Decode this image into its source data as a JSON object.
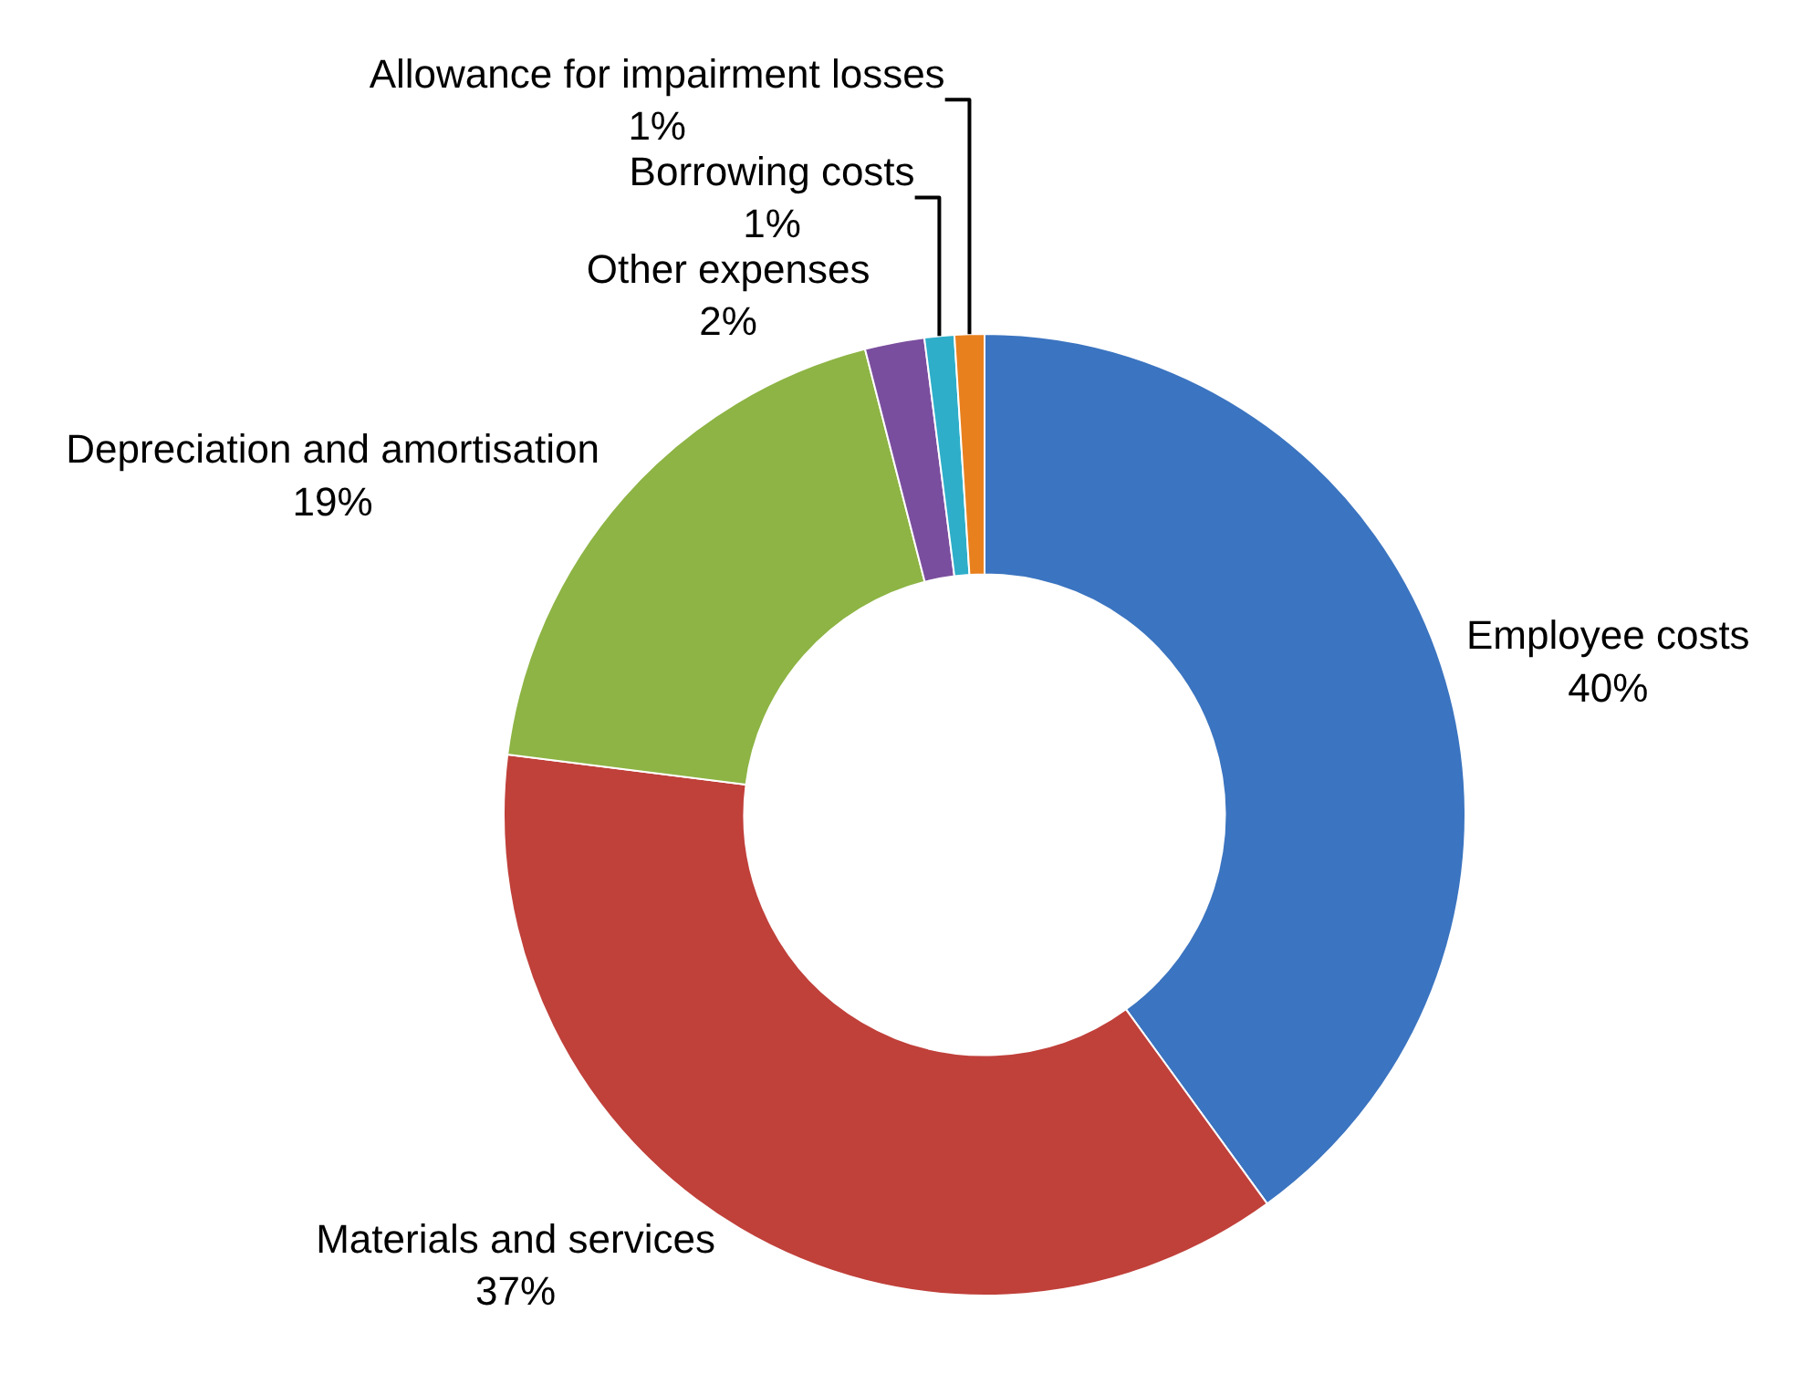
{
  "chart_data": {
    "type": "donut",
    "categories": [
      "Employee costs",
      "Materials and services",
      "Depreciation and amortisation",
      "Other expenses",
      "Borrowing costs",
      "Allowance for impairment losses"
    ],
    "values": [
      40,
      37,
      19,
      2,
      1,
      1
    ],
    "value_labels": [
      "40%",
      "37%",
      "19%",
      "2%",
      "1%",
      "1%"
    ],
    "colors": [
      "#3b74c0",
      "#c0403a",
      "#8db444",
      "#7a4e9e",
      "#2eaec9",
      "#e8801e"
    ],
    "legend": false
  }
}
